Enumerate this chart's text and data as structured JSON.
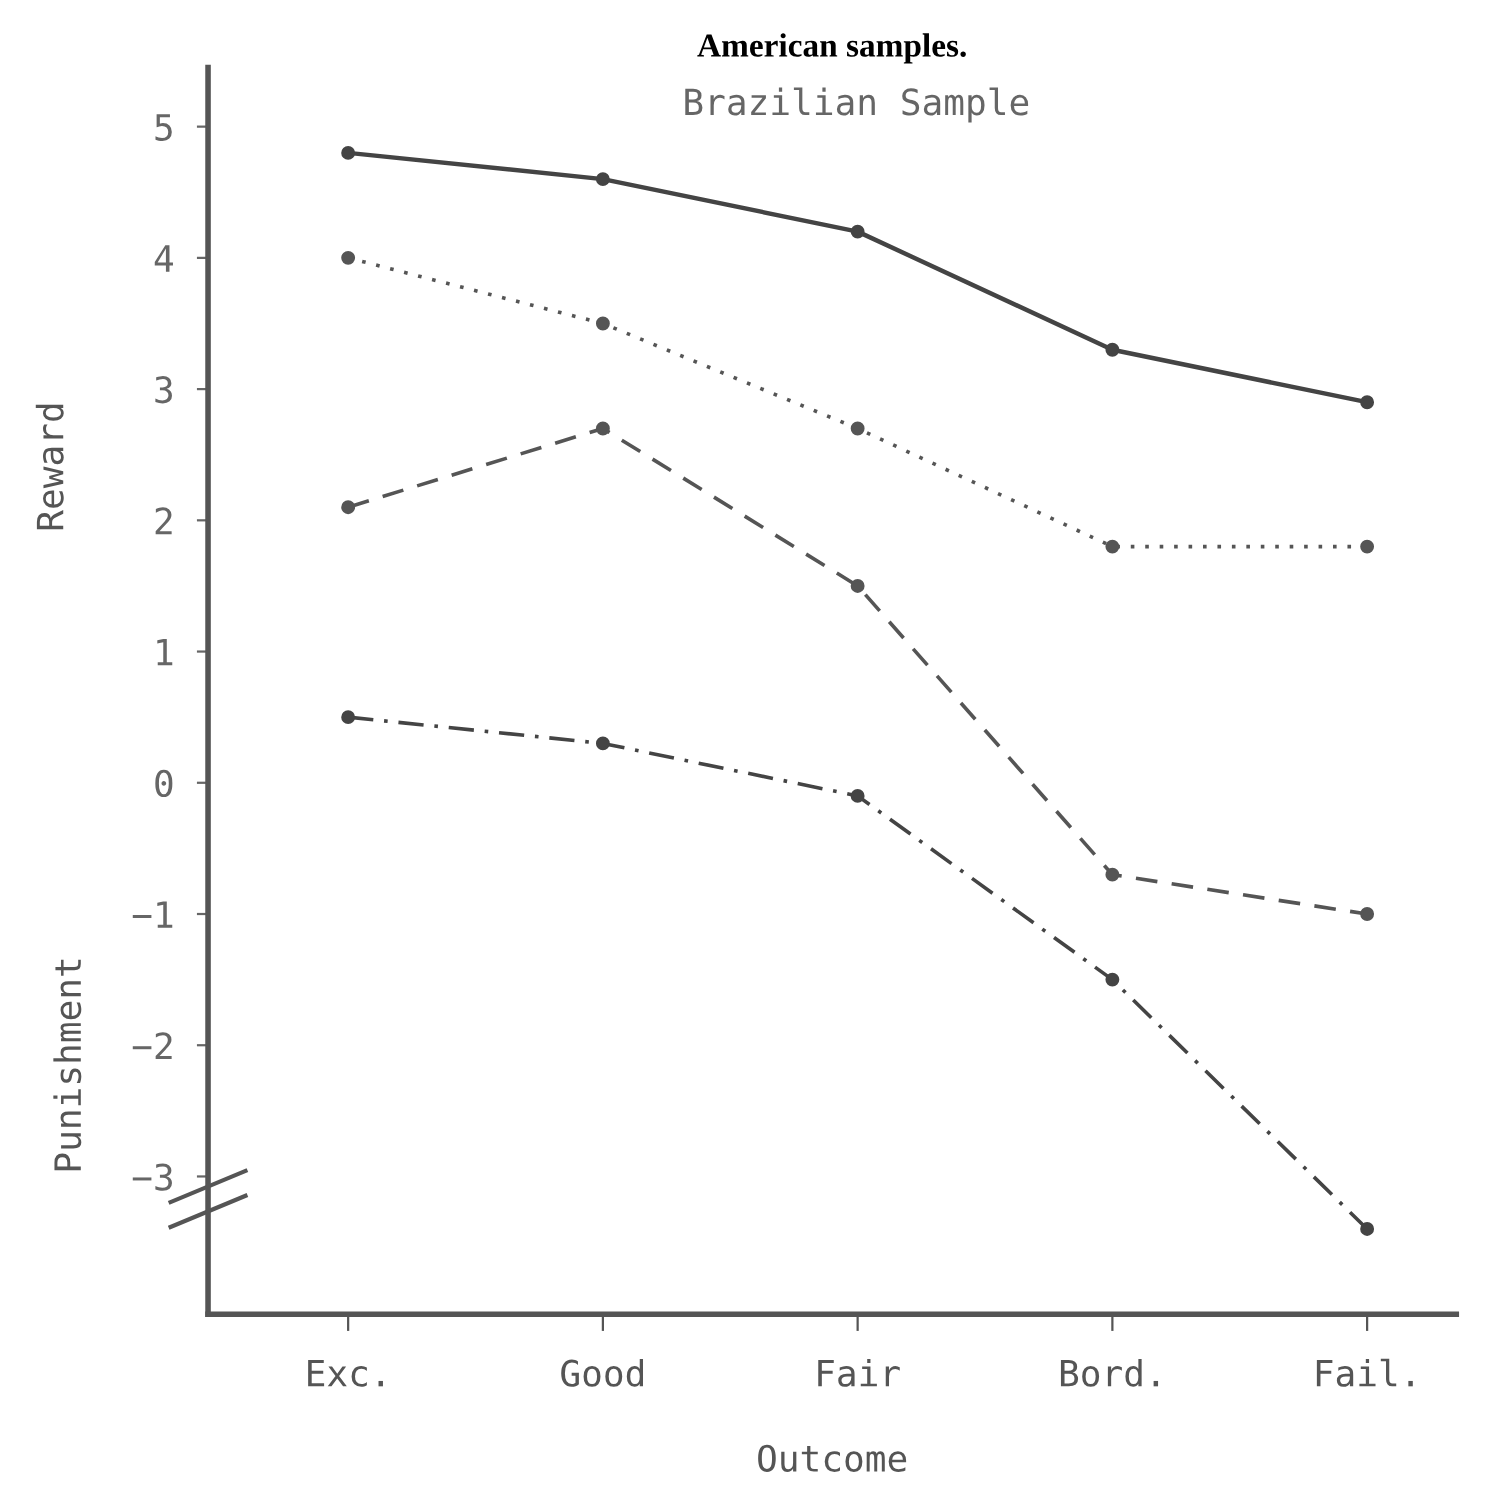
{
  "chart_data": {
    "type": "line",
    "title": "American samples.",
    "xlabel": "Outcome",
    "ylabel": "Reward",
    "annotations": [
      "Brazilian Sample",
      "Punishment"
    ],
    "categories": [
      "Exc.",
      "Good",
      "Fair",
      "Bord.",
      "Fail."
    ],
    "series": [
      {
        "color": "#444444",
        "line_style": "solid",
        "values": [
          4.8,
          4.6,
          4.2,
          3.3,
          2.9
        ]
      },
      {
        "color": "#555555",
        "line_style": "dotted",
        "values": [
          4.0,
          3.5,
          2.7,
          1.8,
          1.8
        ]
      },
      {
        "color": "#555555",
        "line_style": "dashed",
        "values": [
          2.1,
          2.7,
          1.5,
          -0.7,
          -1.0
        ]
      },
      {
        "color": "#444444",
        "line_style": "dashdot",
        "values": [
          0.5,
          0.3,
          -0.1,
          -1.5,
          -3.4
        ]
      }
    ],
    "ylim": [
      -4.05,
      5.45
    ],
    "yticks": [
      {
        "value": -3,
        "label": "−3"
      },
      {
        "value": -2,
        "label": "−2"
      },
      {
        "value": -1,
        "label": "−1"
      },
      0,
      1,
      2,
      3,
      4,
      5
    ],
    "marker": "circle",
    "grid": false,
    "legend": false
  }
}
